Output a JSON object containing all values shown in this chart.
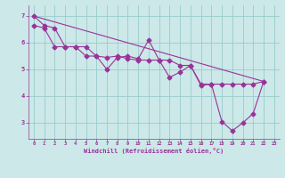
{
  "xlabel": "Windchill (Refroidissement éolien,°C)",
  "bg_color": "#cce8e8",
  "line_color": "#993399",
  "grid_color": "#99cccc",
  "xlim": [
    -0.5,
    23.5
  ],
  "ylim": [
    2.4,
    7.4
  ],
  "xticks": [
    0,
    1,
    2,
    3,
    4,
    5,
    6,
    7,
    8,
    9,
    10,
    11,
    12,
    13,
    14,
    15,
    16,
    17,
    18,
    19,
    20,
    21,
    22,
    23
  ],
  "yticks": [
    3,
    4,
    5,
    6,
    7
  ],
  "series1": [
    [
      0,
      7.0
    ],
    [
      1,
      6.65
    ],
    [
      2,
      6.55
    ],
    [
      3,
      5.85
    ],
    [
      4,
      5.85
    ],
    [
      5,
      5.85
    ],
    [
      6,
      5.5
    ],
    [
      7,
      5.0
    ],
    [
      8,
      5.45
    ],
    [
      9,
      5.5
    ],
    [
      10,
      5.4
    ],
    [
      11,
      6.1
    ],
    [
      12,
      5.35
    ],
    [
      13,
      4.7
    ],
    [
      14,
      4.9
    ],
    [
      15,
      5.15
    ],
    [
      16,
      4.4
    ],
    [
      17,
      4.45
    ],
    [
      18,
      3.05
    ],
    [
      19,
      2.7
    ],
    [
      20,
      3.0
    ],
    [
      21,
      3.35
    ],
    [
      22,
      4.55
    ]
  ],
  "series2": [
    [
      0,
      6.65
    ],
    [
      1,
      6.55
    ],
    [
      2,
      5.85
    ],
    [
      3,
      5.85
    ],
    [
      4,
      5.85
    ],
    [
      5,
      5.5
    ],
    [
      6,
      5.5
    ],
    [
      7,
      5.45
    ],
    [
      8,
      5.5
    ],
    [
      9,
      5.4
    ],
    [
      10,
      5.35
    ],
    [
      11,
      5.35
    ],
    [
      12,
      5.35
    ],
    [
      13,
      5.35
    ],
    [
      14,
      5.15
    ],
    [
      15,
      5.15
    ],
    [
      16,
      4.45
    ],
    [
      17,
      4.45
    ],
    [
      18,
      4.45
    ],
    [
      19,
      4.45
    ],
    [
      20,
      4.45
    ],
    [
      21,
      4.45
    ],
    [
      22,
      4.55
    ]
  ],
  "series3": [
    [
      0,
      7.0
    ],
    [
      22,
      4.55
    ]
  ]
}
